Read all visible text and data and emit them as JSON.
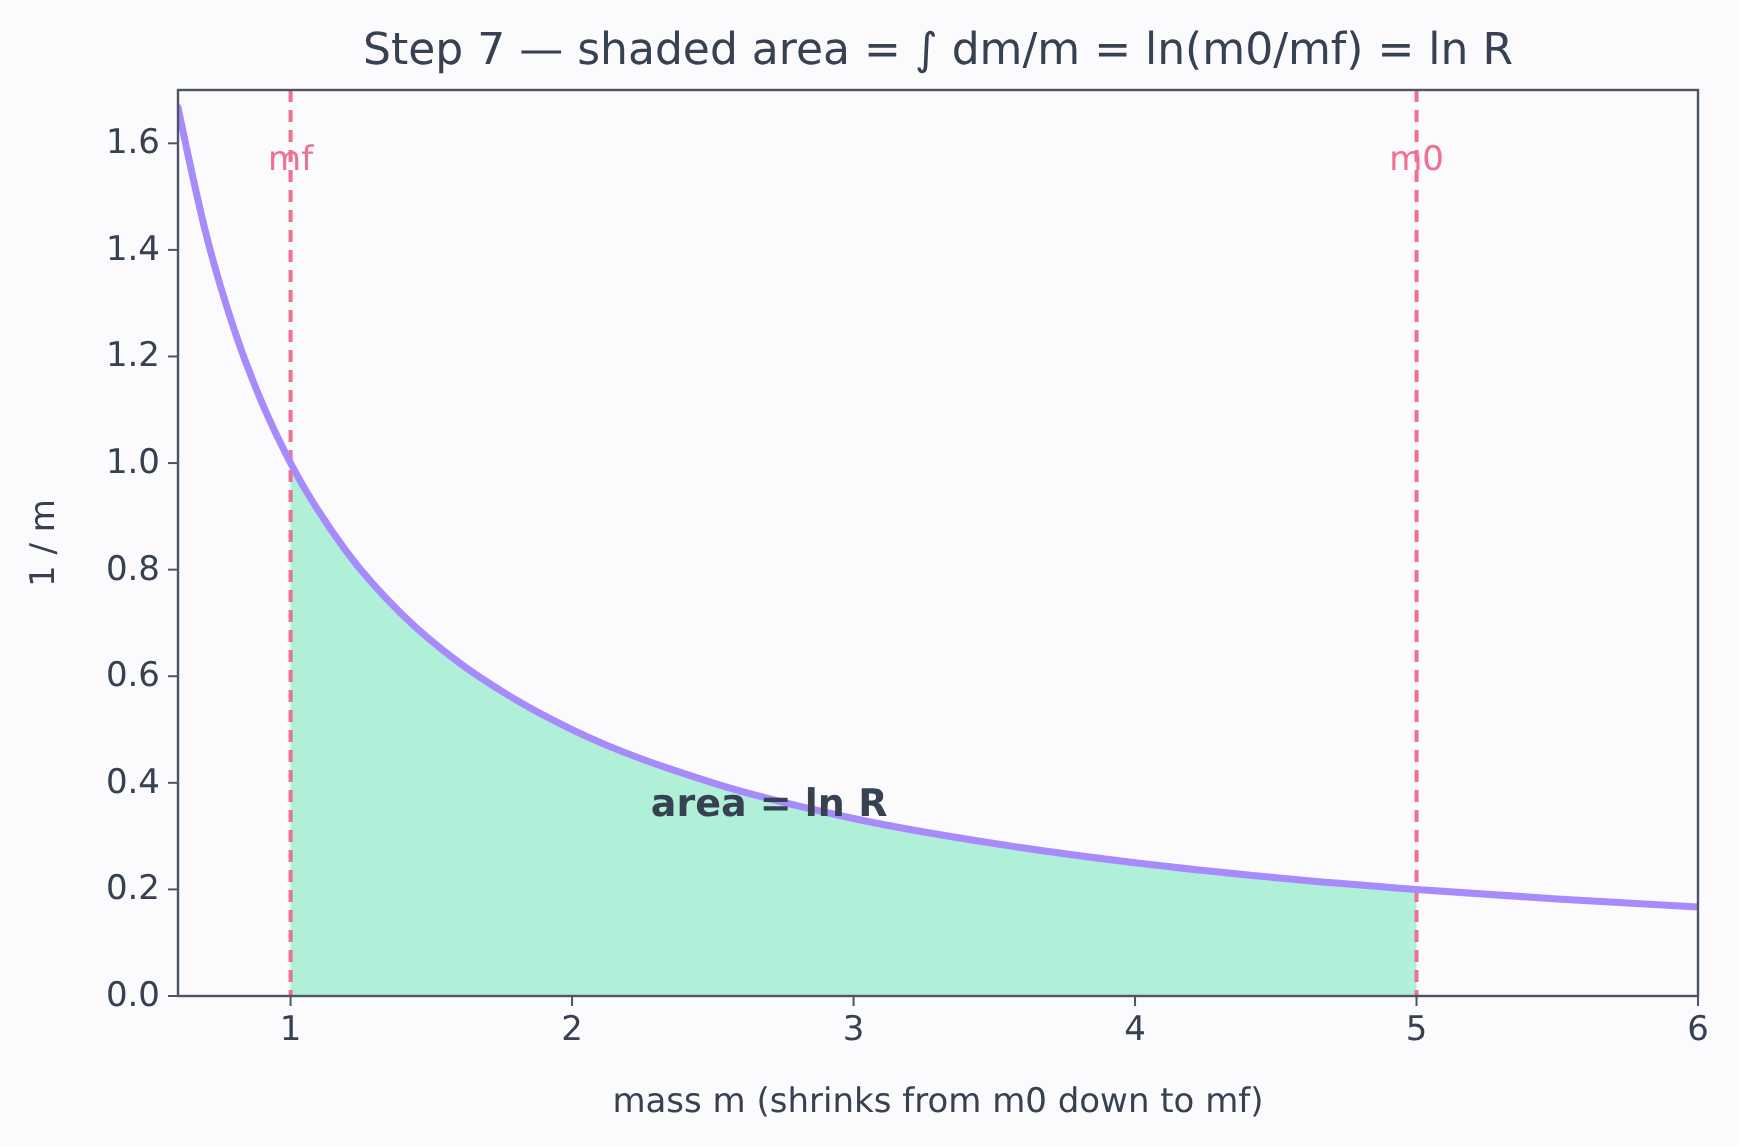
{
  "chart_data": {
    "type": "line",
    "title": "Step 7 — shaded area = ∫ dm/m = ln(m0/mf) = ln R",
    "xlabel": "mass m  (shrinks from m0 down to mf)",
    "ylabel": "1 / m",
    "xlim": [
      0.6,
      6
    ],
    "xticks": [
      1,
      2,
      3,
      4,
      5,
      6
    ],
    "ylim": [
      0,
      1.7
    ],
    "yticks": [
      {
        "value": 0,
        "label": "0.0"
      },
      0.2,
      0.4,
      0.6,
      0.8,
      {
        "value": 1,
        "label": "1.0"
      },
      1.2,
      1.4,
      1.6
    ],
    "series": [
      {
        "type": "area",
        "color": "#b1f0d8",
        "x": [
          1,
          1.2,
          1.4,
          1.6,
          1.8,
          2,
          2.5,
          3,
          3.5,
          4,
          4.5,
          5
        ],
        "values": [
          1,
          0.833,
          0.714,
          0.625,
          0.556,
          0.5,
          0.4,
          0.333,
          0.286,
          0.25,
          0.222,
          0.2
        ]
      },
      {
        "color": "#a78bfa",
        "x": [
          0.6,
          0.7,
          0.8,
          0.9,
          1,
          1.2,
          1.4,
          1.6,
          1.8,
          2,
          2.5,
          3,
          3.5,
          4,
          4.5,
          5,
          5.5,
          6
        ],
        "values": [
          1.667,
          1.429,
          1.25,
          1.111,
          1,
          0.833,
          0.714,
          0.625,
          0.556,
          0.5,
          0.4,
          0.333,
          0.286,
          0.25,
          0.222,
          0.2,
          0.182,
          0.167
        ]
      }
    ],
    "ref_lines": [
      {
        "axis": "x",
        "value": 1,
        "label": "mf",
        "color": "#f07090",
        "line_style": "dashed"
      },
      {
        "axis": "x",
        "value": 5,
        "label": "m0",
        "color": "#f07090",
        "line_style": "dashed"
      }
    ],
    "annotations": [
      {
        "text": "area = ln R",
        "x": 2.7,
        "y": 0.36
      }
    ],
    "grid": false
  }
}
